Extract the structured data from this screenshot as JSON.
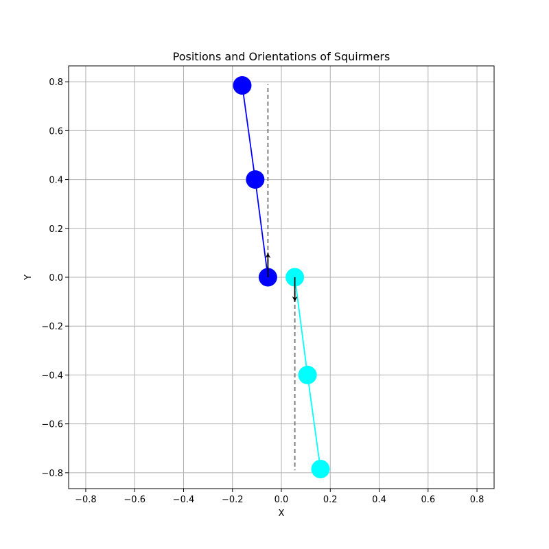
{
  "chart_data": {
    "type": "scatter",
    "title": "Positions and Orientations of Squirmers",
    "xlabel": "X",
    "ylabel": "Y",
    "xlim": [
      -0.87,
      0.87
    ],
    "ylim": [
      -0.865,
      0.865
    ],
    "x_ticks": [
      -0.8,
      -0.6,
      -0.4,
      -0.2,
      0.0,
      0.2,
      0.4,
      0.6,
      0.8
    ],
    "y_ticks": [
      -0.8,
      -0.6,
      -0.4,
      -0.2,
      0.0,
      0.2,
      0.4,
      0.6,
      0.8
    ],
    "x_tick_labels": [
      "−0.8",
      "−0.6",
      "−0.4",
      "−0.2",
      "0.0",
      "0.2",
      "0.4",
      "0.6",
      "0.8"
    ],
    "y_tick_labels": [
      "−0.8",
      "−0.6",
      "−0.4",
      "−0.2",
      "0.0",
      "0.2",
      "0.4",
      "0.6",
      "0.8"
    ],
    "grid": true,
    "series": [
      {
        "color": "#0000ff",
        "points": [
          [
            -0.055,
            0.0
          ],
          [
            -0.107,
            0.4
          ],
          [
            -0.16,
            0.785
          ]
        ],
        "orientation": {
          "x": -0.055,
          "y": 0.0,
          "dx": 0.0,
          "dy": 0.1
        },
        "reference_line": {
          "x": -0.055,
          "y1": 0.0,
          "y2": 0.79
        }
      },
      {
        "color": "#00ffff",
        "points": [
          [
            0.055,
            0.0
          ],
          [
            0.107,
            -0.4
          ],
          [
            0.16,
            -0.785
          ]
        ],
        "orientation": {
          "x": 0.055,
          "y": 0.0,
          "dx": 0.0,
          "dy": -0.1
        },
        "reference_line": {
          "x": 0.055,
          "y1": 0.0,
          "y2": -0.79
        }
      }
    ],
    "colors": {
      "grid": "#b0b0b0",
      "reference_line": "#808080",
      "arrow": "#000000"
    }
  }
}
